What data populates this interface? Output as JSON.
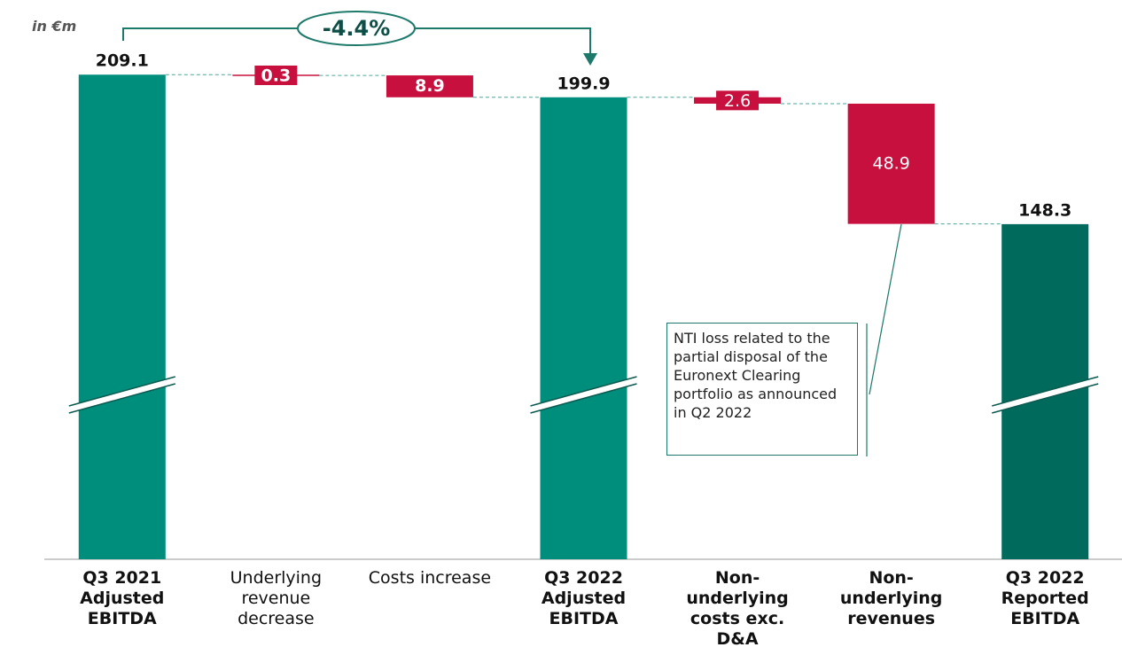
{
  "chart_data": {
    "type": "waterfall",
    "unit_label": "in €m",
    "categories": [
      "Q3 2021 Adjusted EBITDA",
      "Underlying revenue decrease",
      "Costs increase",
      "Q3 2022 Adjusted EBITDA",
      "Non-underlying costs exc. D&A",
      "Non-underlying revenues",
      "Q3 2022 Reported EBITDA"
    ],
    "category_bold": [
      true,
      false,
      false,
      true,
      true,
      true,
      true
    ],
    "values": [
      209.1,
      -0.3,
      -8.9,
      199.9,
      -2.6,
      -48.9,
      148.3
    ],
    "value_labels": [
      "209.1",
      "0.3",
      "8.9",
      "199.9",
      "2.6",
      "48.9",
      "148.3"
    ],
    "value_label_bold": [
      true,
      true,
      true,
      true,
      false,
      false,
      true
    ],
    "measure": [
      "total",
      "relative",
      "relative",
      "total",
      "relative",
      "relative",
      "total"
    ],
    "colors": [
      "#008e7c",
      "#c8103e",
      "#c8103e",
      "#008e7c",
      "#c8103e",
      "#c8103e",
      "#006a5c"
    ],
    "ylim": [
      12,
      220
    ],
    "axis_break": true,
    "change_annotation": "-4.4%",
    "note": "NTI loss related to the partial disposal of the Euronext Clearing portfolio as announced in Q2 2022"
  }
}
